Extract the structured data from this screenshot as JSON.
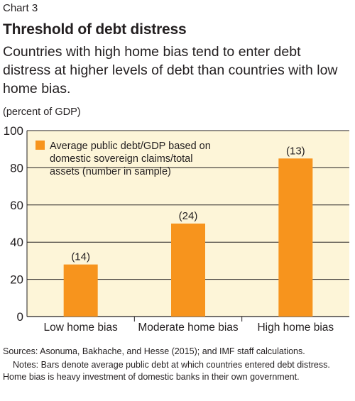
{
  "header": {
    "chart_number": "Chart 3",
    "title": "Threshold of debt distress",
    "subtitle": "Countries with high home bias tend to enter debt distress at higher levels of debt than countries with low home bias.",
    "unit": "(percent of GDP)"
  },
  "chart_data": {
    "type": "bar",
    "categories": [
      "Low home bias",
      "Moderate home bias",
      "High home bias"
    ],
    "series": [
      {
        "name": "Average public debt/GDP based on domestic sovereign claims/total assets (number in sample)",
        "values": [
          28,
          50,
          85
        ],
        "color": "#f7941d"
      }
    ],
    "data_labels": [
      "(14)",
      "(24)",
      "(13)"
    ],
    "legend_lines": [
      "Average public debt/GDP based on",
      "domestic sovereign claims/total",
      "assets (number in sample)"
    ],
    "ylim": [
      0,
      100
    ],
    "yticks": [
      0,
      20,
      40,
      60,
      80,
      100
    ],
    "grid": true,
    "legend_position": "top-left",
    "background": "#fdf5d8"
  },
  "footer": {
    "sources": "Sources: Asonuma, Bakhache, and Hesse (2015); and IMF staff calculations.",
    "notes": "Notes: Bars denote average public debt at which countries entered debt distress. Home bias is heavy investment of domestic banks in their own government."
  }
}
